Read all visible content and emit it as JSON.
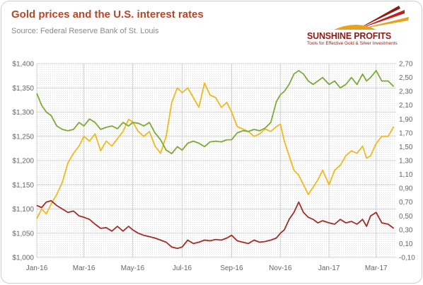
{
  "title": "Gold prices and the U.S. interest rates",
  "subtitle": "Source: Federal Reserve Bank of St. Louis",
  "logo": {
    "name": "SUNSHINE PROFITS",
    "tagline": "Tools for Effective Gold & Silver Investments"
  },
  "colors": {
    "gold": "#f3b81c",
    "yield10y": "#7bab33",
    "yield2y": "#a82a24",
    "title": "#b5472a"
  },
  "chart_data": {
    "type": "line",
    "title": "Gold prices and the U.S. interest rates",
    "x_tick_labels": [
      "Jan-16",
      "Mar-16",
      "May-16",
      "Jul-16",
      "Sep-16",
      "Nov-16",
      "Jan-17",
      "Mar-17"
    ],
    "x_tick_index": [
      0,
      59,
      120,
      182,
      244,
      305,
      366,
      425
    ],
    "x_range": [
      0,
      450
    ],
    "left_axis": {
      "ticks": [
        "$1,000",
        "$1,050",
        "$1,100",
        "$1,150",
        "$1,200",
        "$1,250",
        "$1,300",
        "$1,350",
        "$1,400"
      ],
      "range": [
        1000,
        1400
      ]
    },
    "right_axis": {
      "ticks": [
        "-0,10",
        "0,10",
        "0,30",
        "0,50",
        "0,70",
        "0,90",
        "1,10",
        "1,30",
        "1,50",
        "1,70",
        "1,90",
        "2,10",
        "2,30",
        "2,50",
        "2,70"
      ],
      "range": [
        -0.1,
        2.7
      ]
    },
    "grid": true,
    "series": [
      {
        "axis": "left",
        "x": [
          0,
          6,
          12,
          18,
          25,
          32,
          39,
          46,
          53,
          59,
          66,
          73,
          80,
          87,
          94,
          101,
          108,
          115,
          120,
          127,
          134,
          141,
          148,
          155,
          162,
          169,
          176,
          182,
          189,
          196,
          203,
          210,
          217,
          224,
          231,
          238,
          244,
          251,
          258,
          265,
          272,
          279,
          286,
          293,
          300,
          305,
          310,
          316,
          322,
          328,
          334,
          340,
          346,
          352,
          358,
          366,
          373,
          380,
          387,
          394,
          401,
          408,
          413,
          418,
          425,
          432,
          440,
          447
        ],
        "y": [
          1080,
          1100,
          1090,
          1110,
          1130,
          1155,
          1195,
          1215,
          1230,
          1250,
          1240,
          1255,
          1220,
          1240,
          1230,
          1245,
          1260,
          1285,
          1280,
          1260,
          1250,
          1260,
          1230,
          1215,
          1250,
          1320,
          1350,
          1340,
          1350,
          1330,
          1310,
          1360,
          1335,
          1330,
          1310,
          1320,
          1300,
          1270,
          1265,
          1260,
          1250,
          1255,
          1265,
          1260,
          1270,
          1275,
          1240,
          1210,
          1180,
          1170,
          1150,
          1130,
          1145,
          1160,
          1180,
          1150,
          1180,
          1190,
          1210,
          1220,
          1215,
          1230,
          1205,
          1210,
          1235,
          1250,
          1250,
          1270
        ]
      },
      {
        "axis": "right",
        "x": [
          0,
          6,
          12,
          18,
          25,
          32,
          39,
          46,
          53,
          59,
          66,
          73,
          80,
          87,
          94,
          101,
          108,
          115,
          120,
          127,
          134,
          141,
          148,
          155,
          162,
          169,
          176,
          182,
          189,
          196,
          203,
          210,
          217,
          224,
          231,
          238,
          244,
          251,
          258,
          265,
          272,
          279,
          286,
          293,
          300,
          305,
          310,
          316,
          322,
          328,
          334,
          340,
          346,
          352,
          358,
          366,
          373,
          380,
          387,
          394,
          401,
          408,
          413,
          418,
          425,
          432,
          440,
          447
        ],
        "y": [
          2.27,
          2.1,
          2.0,
          1.95,
          1.8,
          1.75,
          1.73,
          1.75,
          1.85,
          1.8,
          1.9,
          1.85,
          1.75,
          1.78,
          1.8,
          1.76,
          1.85,
          1.8,
          1.85,
          1.84,
          1.8,
          1.85,
          1.7,
          1.6,
          1.45,
          1.4,
          1.5,
          1.45,
          1.55,
          1.58,
          1.55,
          1.5,
          1.57,
          1.58,
          1.57,
          1.6,
          1.6,
          1.7,
          1.73,
          1.72,
          1.75,
          1.73,
          1.77,
          1.85,
          2.15,
          2.25,
          2.3,
          2.4,
          2.55,
          2.6,
          2.55,
          2.45,
          2.4,
          2.45,
          2.5,
          2.4,
          2.45,
          2.35,
          2.4,
          2.5,
          2.4,
          2.55,
          2.45,
          2.5,
          2.6,
          2.45,
          2.45,
          2.37
        ]
      },
      {
        "axis": "right",
        "x": [
          0,
          6,
          12,
          18,
          25,
          32,
          39,
          46,
          53,
          59,
          66,
          73,
          80,
          87,
          94,
          101,
          108,
          115,
          120,
          127,
          134,
          141,
          148,
          155,
          162,
          169,
          176,
          182,
          189,
          196,
          203,
          210,
          217,
          224,
          231,
          238,
          244,
          251,
          258,
          265,
          272,
          279,
          286,
          293,
          300,
          305,
          310,
          316,
          322,
          328,
          334,
          340,
          346,
          352,
          358,
          366,
          373,
          380,
          387,
          394,
          401,
          408,
          413,
          418,
          425,
          432,
          440,
          447
        ],
        "y": [
          0.65,
          0.62,
          0.7,
          0.72,
          0.65,
          0.6,
          0.55,
          0.57,
          0.5,
          0.48,
          0.45,
          0.38,
          0.32,
          0.33,
          0.28,
          0.35,
          0.28,
          0.35,
          0.3,
          0.25,
          0.22,
          0.2,
          0.18,
          0.15,
          0.12,
          0.05,
          0.03,
          0.05,
          0.15,
          0.1,
          0.12,
          0.15,
          0.14,
          0.16,
          0.15,
          0.18,
          0.22,
          0.14,
          0.12,
          0.1,
          0.15,
          0.12,
          0.13,
          0.15,
          0.18,
          0.25,
          0.3,
          0.45,
          0.55,
          0.7,
          0.55,
          0.48,
          0.45,
          0.4,
          0.43,
          0.4,
          0.38,
          0.45,
          0.4,
          0.42,
          0.38,
          0.45,
          0.35,
          0.5,
          0.55,
          0.4,
          0.38,
          0.32
        ]
      }
    ]
  }
}
